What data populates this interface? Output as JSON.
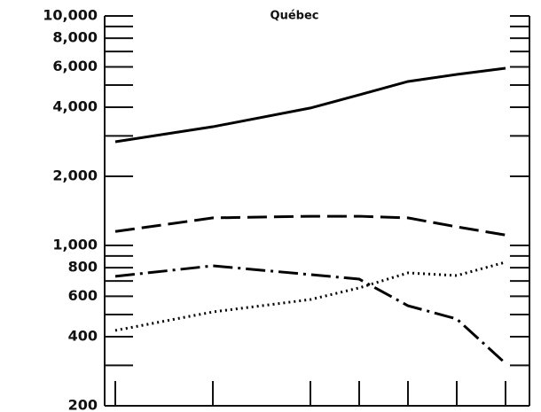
{
  "chart_data": {
    "type": "line",
    "title": "Québec",
    "log_y": true,
    "x": [
      0,
      2,
      4,
      5,
      6,
      7,
      8
    ],
    "xlim": [
      0,
      8
    ],
    "xticks": [
      0,
      2,
      4,
      5,
      6,
      7,
      8
    ],
    "ylim": [
      200,
      10000
    ],
    "yticks": [
      {
        "value": 200,
        "label": "200"
      },
      {
        "value": 400,
        "label": "400"
      },
      {
        "value": 600,
        "label": "600"
      },
      {
        "value": 800,
        "label": "800"
      },
      {
        "value": 1000,
        "label": "1,000"
      },
      {
        "value": 2000,
        "label": "2,000"
      },
      {
        "value": 4000,
        "label": "4,000"
      },
      {
        "value": 6000,
        "label": "6,000"
      },
      {
        "value": 8000,
        "label": "8,000"
      },
      {
        "value": 10000,
        "label": "10,000"
      }
    ],
    "yticks_minor": [
      300,
      500,
      700,
      900,
      3000,
      5000,
      7000,
      9000
    ],
    "series": [
      {
        "color": "#000000",
        "dash": "none",
        "values": [
          2830,
          3290,
          3970,
          4530,
          5180,
          5560,
          5920
        ]
      },
      {
        "color": "#000000",
        "dash": "22 8",
        "values": [
          1150,
          1318,
          1340,
          1340,
          1318,
          1205,
          1110
        ]
      },
      {
        "color": "#000000",
        "dash": "22 6 3 6",
        "values": [
          733,
          815,
          746,
          713,
          546,
          478,
          306
        ]
      },
      {
        "color": "#000000",
        "dash": "2 4",
        "values": [
          426,
          513,
          581,
          653,
          759,
          739,
          845
        ]
      }
    ]
  }
}
